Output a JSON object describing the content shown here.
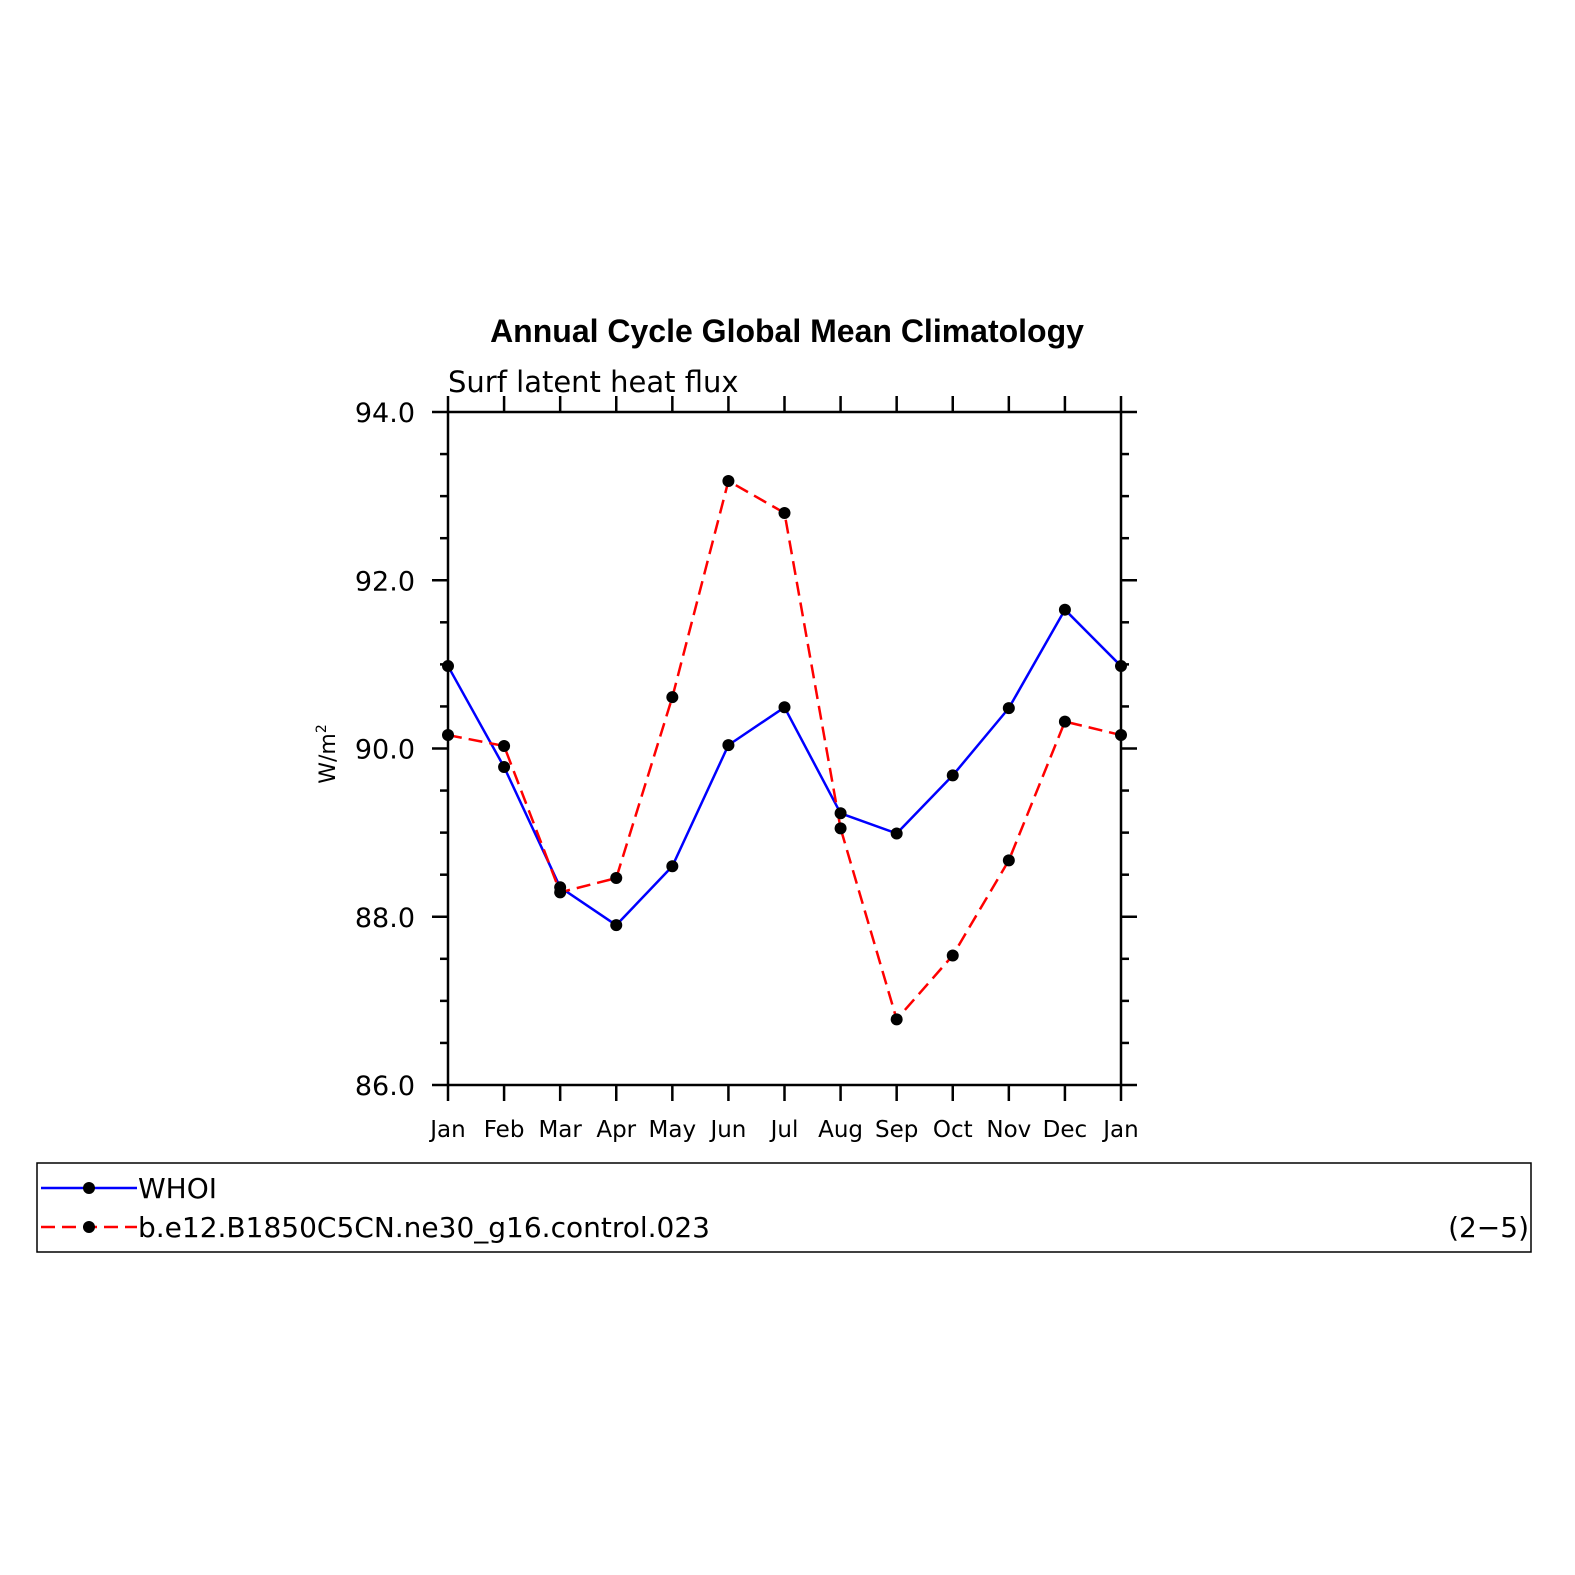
{
  "chart_data": {
    "type": "line",
    "title": "Annual Cycle Global Mean Climatology",
    "subtitle": "Surf latent heat flux",
    "ylabel": "W/m",
    "ylabel_superscript": "2",
    "xlabel": "",
    "categories": [
      "Jan",
      "Feb",
      "Mar",
      "Apr",
      "May",
      "Jun",
      "Jul",
      "Aug",
      "Sep",
      "Oct",
      "Nov",
      "Dec",
      "Jan"
    ],
    "ylim": [
      86.0,
      94.0
    ],
    "y_ticks": [
      "86.0",
      "88.0",
      "90.0",
      "92.0",
      "94.0"
    ],
    "grid": false,
    "legend_position": "bottom",
    "series": [
      {
        "name": "WHOI",
        "color": "#0000ff",
        "dash": "solid",
        "values": [
          90.98,
          89.78,
          88.35,
          87.9,
          88.6,
          90.04,
          90.49,
          89.23,
          88.99,
          89.68,
          90.48,
          91.65,
          90.98
        ]
      },
      {
        "name": "b.e12.B1850C5CN.ne30_g16.control.023",
        "color": "#ff0000",
        "dash": "dashed",
        "values": [
          90.16,
          90.03,
          88.29,
          88.46,
          90.61,
          93.18,
          92.8,
          89.05,
          86.78,
          87.54,
          88.67,
          90.32,
          90.16
        ]
      }
    ],
    "panel_label": "(2−5)"
  }
}
